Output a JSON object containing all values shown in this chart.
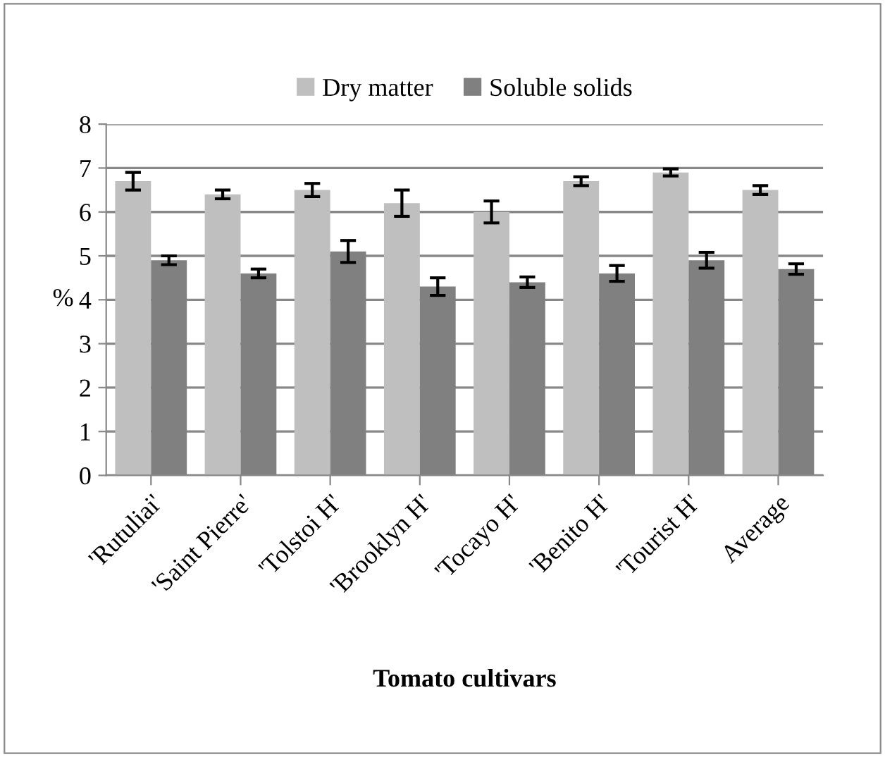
{
  "chart_data": {
    "type": "bar",
    "xlabel": "Tomato cultivars",
    "ylabel": "%",
    "categories": [
      "'Rutuliai'",
      "'Saint Pierre'",
      "'Tolstoi H'",
      "'Brooklyn H'",
      "'Tocayo H'",
      "'Benito H'",
      "'Tourist H'",
      "Average"
    ],
    "series": [
      {
        "name": "Dry matter",
        "color": "#bfbfbf",
        "values": [
          6.7,
          6.4,
          6.5,
          6.2,
          6.0,
          6.7,
          6.9,
          6.5
        ],
        "errors": [
          0.2,
          0.1,
          0.15,
          0.3,
          0.25,
          0.1,
          0.08,
          0.1
        ]
      },
      {
        "name": "Soluble solids",
        "color": "#808080",
        "values": [
          4.9,
          4.6,
          5.1,
          4.3,
          4.4,
          4.6,
          4.9,
          4.7
        ],
        "errors": [
          0.1,
          0.1,
          0.25,
          0.2,
          0.12,
          0.18,
          0.18,
          0.12
        ]
      }
    ],
    "ylim": [
      0,
      8
    ],
    "yticks": [
      0,
      1,
      2,
      3,
      4,
      5,
      6,
      7,
      8
    ],
    "grid": "y",
    "legend": "top"
  }
}
